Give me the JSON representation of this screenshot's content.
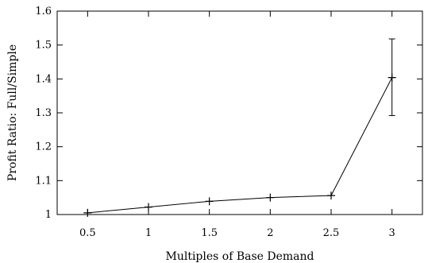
{
  "chart_data": {
    "type": "line",
    "title": "",
    "xlabel": "Multiples of Base Demand",
    "ylabel": "Profit Ratio: Full/Simple",
    "xlim": [
      0.25,
      3.25
    ],
    "ylim": [
      1.0,
      1.6
    ],
    "x_ticks": [
      {
        "value": 0.5,
        "label": "0.5"
      },
      {
        "value": 1,
        "label": "1"
      },
      {
        "value": 1.5,
        "label": "1.5"
      },
      {
        "value": 2,
        "label": "2"
      },
      {
        "value": 2.5,
        "label": "2.5"
      },
      {
        "value": 3,
        "label": "3"
      }
    ],
    "y_ticks": [
      {
        "value": 1.0,
        "label": "1"
      },
      {
        "value": 1.1,
        "label": "1.1"
      },
      {
        "value": 1.2,
        "label": "1.2"
      },
      {
        "value": 1.3,
        "label": "1.3"
      },
      {
        "value": 1.4,
        "label": "1.4"
      },
      {
        "value": 1.5,
        "label": "1.5"
      },
      {
        "value": 1.6,
        "label": "1.6"
      }
    ],
    "grid": false,
    "legend": "none",
    "series": [
      {
        "x": [
          0.5,
          1,
          1.5,
          2,
          2.5,
          3
        ],
        "y": [
          1.005,
          1.022,
          1.039,
          1.05,
          1.056,
          1.404
        ],
        "error_low": [
          null,
          null,
          null,
          null,
          null,
          1.292
        ],
        "error_high": [
          null,
          null,
          null,
          null,
          null,
          1.518
        ],
        "marker": "plus",
        "color": "#000000"
      }
    ]
  }
}
